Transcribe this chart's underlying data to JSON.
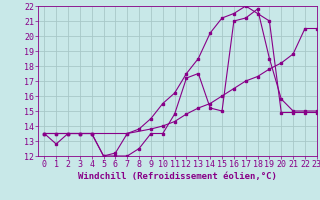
{
  "xlabel": "Windchill (Refroidissement éolien,°C)",
  "ylabel": "",
  "xlim": [
    -0.5,
    23
  ],
  "ylim": [
    12,
    22
  ],
  "xticks": [
    0,
    1,
    2,
    3,
    4,
    5,
    6,
    7,
    8,
    9,
    10,
    11,
    12,
    13,
    14,
    15,
    16,
    17,
    18,
    19,
    20,
    21,
    22,
    23
  ],
  "yticks": [
    12,
    13,
    14,
    15,
    16,
    17,
    18,
    19,
    20,
    21,
    22
  ],
  "background_color": "#c8e8e8",
  "grid_color": "#a8c8c8",
  "line_color": "#880088",
  "line1_x": [
    0,
    1,
    2,
    3,
    4,
    5,
    6,
    7,
    8,
    9,
    10,
    11,
    12,
    13,
    14,
    15,
    16,
    17,
    18,
    19,
    20,
    21,
    22,
    23
  ],
  "line1_y": [
    13.5,
    12.8,
    13.5,
    13.5,
    13.5,
    12.0,
    12.0,
    12.0,
    12.5,
    13.5,
    13.5,
    14.8,
    17.2,
    17.5,
    15.2,
    15.0,
    21.0,
    21.2,
    21.8,
    18.5,
    15.8,
    15.0,
    15.0,
    15.0
  ],
  "line2_x": [
    0,
    1,
    2,
    3,
    4,
    7,
    9,
    10,
    11,
    12,
    13,
    14,
    15,
    16,
    17,
    18,
    19,
    20,
    21,
    22,
    23
  ],
  "line2_y": [
    13.5,
    13.5,
    13.5,
    13.5,
    13.5,
    13.5,
    13.8,
    14.0,
    14.3,
    14.8,
    15.2,
    15.5,
    16.0,
    16.5,
    17.0,
    17.3,
    17.8,
    18.2,
    18.8,
    20.5,
    20.5
  ],
  "line3_x": [
    0,
    1,
    2,
    3,
    4,
    5,
    6,
    7,
    8,
    9,
    10,
    11,
    12,
    13,
    14,
    15,
    16,
    17,
    18,
    19,
    20,
    21,
    22,
    23
  ],
  "line3_y": [
    13.5,
    13.5,
    13.5,
    13.5,
    13.5,
    12.0,
    12.2,
    13.5,
    13.8,
    14.5,
    15.5,
    16.2,
    17.5,
    18.5,
    20.2,
    21.2,
    21.5,
    22.0,
    21.5,
    21.0,
    14.9,
    14.9,
    14.9,
    14.9
  ],
  "tick_fontsize": 6,
  "label_fontsize": 6.5
}
